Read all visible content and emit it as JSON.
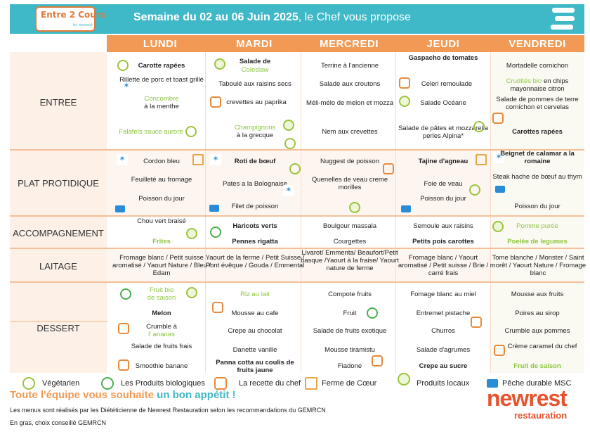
{
  "header": {
    "logo_text": "Entre 2 Cours",
    "logo_sub": "by newrest",
    "title_bold": "Semaine du 02 au 06 Juin  2025",
    "title_rest": ", le Chef vous propose"
  },
  "days": [
    "LUNDI",
    "MARDI",
    "MERCREDI",
    "JEUDI",
    "VENDREDI"
  ],
  "categories": {
    "entree": "ENTREE",
    "plat": "PLAT PROTIDIQUE",
    "accomp": "ACCOMPAGNEMENT",
    "laitage": "LAITAGE",
    "dessert": "DESSERT"
  },
  "entree": {
    "lundi": [
      "Carotte rapées",
      "Rillette de porc et toast grillé",
      "Concombre",
      "à la menthe",
      "Falafels sauce aurore"
    ],
    "mardi": [
      "Salade de",
      "Coleslaw",
      "Taboulé aux raisins secs",
      "crevettes au paprika",
      "Champignons",
      "à la grecque"
    ],
    "mercredi": [
      "Terrine à l'ancienne",
      "Salade aux croutons",
      "Méli-mélo de melon et mozza",
      "Nem aux crevettes"
    ],
    "jeudi": [
      "Gaspacho de tomates",
      "Celeri remoulade",
      "Salade Océane",
      "Salade de pâtes et mozzarella perles Alpina*"
    ],
    "vendredi": [
      "Mortadelle cornichon",
      "Crudités bio",
      "en chips mayonnaise citron",
      "Salade de pommes de terre cornichon et cervelas",
      "Carottes rapées"
    ]
  },
  "plat": {
    "lundi": [
      "Cordon bleu",
      "Feuilleté au fromage",
      "Poisson du jour"
    ],
    "mardi": [
      "Roti de bœuf",
      "Pates a la Bolognaise",
      "Filet de poisson"
    ],
    "mercredi": [
      "Nuggest de poisson",
      "Quenelles de veau creme morilles"
    ],
    "jeudi": [
      "Tajine d'agneau",
      "Foie de veau",
      "Poisson du jour"
    ],
    "vendredi": [
      "Beignet de calamar a la romaine",
      "Steak hache de bœuf au thym",
      "Poisson  du jour"
    ]
  },
  "accomp": {
    "lundi": [
      "Chou vert braisé",
      "Frites"
    ],
    "mardi": [
      "Haricots verts",
      "Pennes rigatta"
    ],
    "mercredi": [
      "Boulgour massala",
      "Courgettes"
    ],
    "jeudi": [
      "Semoule aux raisins",
      "Petits pois carottes"
    ],
    "vendredi": [
      "Pomme purée",
      "Poelée de legumes"
    ]
  },
  "laitage": {
    "lundi": "Fromage blanc / Petit suisse aromatisé / Yaourt Nature / Bleu / Edam",
    "mardi": "Yaourt de la ferme / Petit Suisse / Pont évêque / Gouda / Emmental",
    "mercredi": "Livarot/ Emmenta/ Beaufort/Petit basque /Yaourt à la fraise/ Yaourt nature de ferme",
    "jeudi": "Fromage blanc / Yaourt aromatisé / Petit suisse / Brie / carré frais",
    "vendredi": "Tome blanche / Monster / Saint morêt / Yaourt Nature / Fromage blanc"
  },
  "dessert": {
    "lundi": [
      "Fruit bio",
      "de saison",
      "Melon",
      "Crumble à",
      "l' ananas",
      "Salade de fruits frais",
      "Smoothie banane"
    ],
    "mardi": [
      "Riz au lait",
      "Mousse au cafe",
      "Crepe au chocolat",
      "Danette vanille",
      "Panna cotta au coulis de fruits jaune"
    ],
    "mercredi": [
      "Compote fruits",
      "Fruit",
      "Salade de fruits exotique",
      "Mousse tiramistu",
      "Fiadone"
    ],
    "jeudi": [
      "Fomage blanc au miel",
      "Entremet pistache",
      "Churros",
      "Salade d'agrumes",
      "Crepe au sucre"
    ],
    "vendredi": [
      "Mousse aux fruits",
      "Poires au sirop",
      "Crumble aux pommes",
      "Crème caramel du chef",
      "Fruit de saison"
    ]
  },
  "legend": [
    "Végétarien",
    "Les Produits biologiques",
    "La recette du chef",
    "Ferme de Cœur",
    "Produits locaux",
    "Pêche durable MSC"
  ],
  "slogan_a": "Toute l'équipe vous souhaite",
  "slogan_b": " un bon appétit !",
  "note1": "Les menus sont réalisés par les Diététicienne de Newrest Restauration selon les recommandations du GEMRCN",
  "note2": "En gras, choix conseillé GEMRCN",
  "brand": {
    "name": "newrest",
    "sub": "restauration"
  },
  "colors": {
    "teal": "#3fb9c7",
    "orange": "#f29a55",
    "green": "#8cc63f",
    "brand_red": "#e5542e"
  }
}
